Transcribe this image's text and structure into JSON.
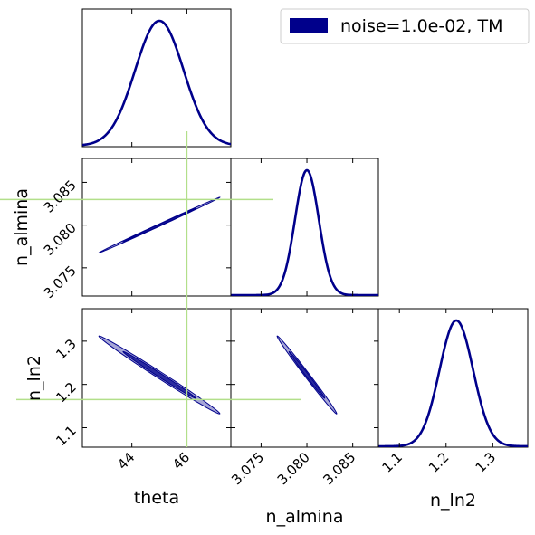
{
  "chart_data": {
    "type": "corner",
    "parameters": [
      "theta",
      "n_almina",
      "n_ln2"
    ],
    "labels": {
      "theta": "theta",
      "n_almina": "n_almina",
      "n_ln2": "n_ln2"
    },
    "ranges": {
      "theta": [
        42.2,
        47.6
      ],
      "n_almina": [
        3.0717,
        3.0878
      ],
      "n_ln2": [
        1.055,
        1.375
      ]
    },
    "ticks": {
      "theta": [
        44,
        46
      ],
      "n_almina": [
        3.075,
        3.08,
        3.085
      ],
      "n_ln2": [
        1.1,
        1.2,
        1.3
      ]
    },
    "tick_labels": {
      "theta": [
        "44",
        "46"
      ],
      "n_almina": [
        "3.075",
        "3.080",
        "3.085"
      ],
      "n_ln2": [
        "1.1",
        "1.2",
        "1.3"
      ]
    },
    "series": [
      {
        "name": "noise=1.0e-02, TM",
        "color": "#00008B",
        "mean": {
          "theta": 45.0,
          "n_almina": 3.08,
          "n_ln2": 1.222
        },
        "sigma": {
          "theta": 0.88,
          "n_almina": 0.0013,
          "n_ln2": 0.036
        },
        "correlation": {
          "theta_n_almina": 0.999,
          "theta_n_ln2": -0.995,
          "n_almina_n_ln2": -0.995
        }
      }
    ],
    "truth": {
      "color": "#b2df8a",
      "theta": 46.0,
      "n_almina": 3.083,
      "n_ln2": 1.165
    },
    "legend": {
      "position": "top-right",
      "labels": [
        "noise=1.0e-02, TM"
      ]
    }
  }
}
